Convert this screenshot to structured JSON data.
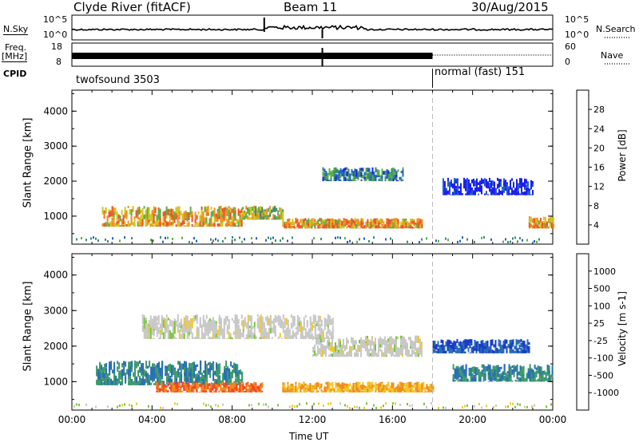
{
  "header": {
    "title": "Clyde River (fitACF)",
    "beam": "Beam 11",
    "date": "30/Aug/2015"
  },
  "summary": {
    "nsky_label": "N.Sky",
    "nsky_ticks": [
      "10^5",
      "10^0"
    ],
    "nsearch_label": "N.Search",
    "nsearch_ticks": [
      "10^5",
      "10^0"
    ],
    "freq_label": "Freq.",
    "freq_unit": "[MHz]",
    "freq_ticks": [
      "18",
      "8"
    ],
    "nave_label": "Nave",
    "nave_ticks": [
      "60",
      "0"
    ],
    "cpid_label": "CPID",
    "cpid_modes": [
      {
        "name": "twofsound",
        "id": "3503",
        "start_hour": 0
      },
      {
        "name": "normal (fast)",
        "id": "151",
        "start_hour": 18
      }
    ]
  },
  "chart_data": [
    {
      "type": "heatmap",
      "name": "power-panel",
      "xlabel": "",
      "ylabel": "Slant Range [km]",
      "xlim": [
        0,
        24
      ],
      "ylim": [
        200,
        4600
      ],
      "yticks": [
        "1000",
        "2000",
        "3000",
        "4000"
      ],
      "colorbar": {
        "label": "Power [dB]",
        "ticks": [
          "4",
          "8",
          "12",
          "16",
          "20",
          "24",
          "28"
        ],
        "colors": [
          "#1e1ef0",
          "#2060c8",
          "#3a8c6e",
          "#58b048",
          "#d2c820",
          "#f09020",
          "#f05028",
          "#e81818"
        ]
      },
      "echo_regions": [
        {
          "t0": 1.5,
          "t1": 8.5,
          "r0": 700,
          "r1": 1300,
          "value": 28
        },
        {
          "t0": 8.5,
          "t1": 10.5,
          "r0": 900,
          "r1": 1300,
          "value": 24
        },
        {
          "t0": 10.5,
          "t1": 17.5,
          "r0": 650,
          "r1": 950,
          "value": 28
        },
        {
          "t0": 12.5,
          "t1": 16.5,
          "r0": 2000,
          "r1": 2400,
          "value": 16
        },
        {
          "t0": 18.5,
          "t1": 23,
          "r0": 1600,
          "r1": 2100,
          "value": 8
        },
        {
          "t0": 22.8,
          "t1": 24,
          "r0": 650,
          "r1": 1000,
          "value": 28
        }
      ]
    },
    {
      "type": "heatmap",
      "name": "velocity-panel",
      "xlabel": "Time UT",
      "ylabel": "Slant Range [km]",
      "xlim": [
        0,
        24
      ],
      "ylim": [
        200,
        4600
      ],
      "xticks": [
        "00:00",
        "04:00",
        "08:00",
        "12:00",
        "16:00",
        "20:00",
        "00:00"
      ],
      "yticks": [
        "1000",
        "2000",
        "3000",
        "4000"
      ],
      "colorbar": {
        "label": "Velocity [m s-1]",
        "ticks": [
          "1000",
          "500",
          "100",
          "25",
          "-25",
          "-100",
          "-500",
          "-1000"
        ],
        "colors": [
          "#1a3cc8",
          "#2a6eb4",
          "#3c9a6a",
          "#78c832",
          "#c8c8c8",
          "#f0c828",
          "#f08c1e",
          "#f04628",
          "#e61414"
        ]
      },
      "echo_regions": [
        {
          "t0": 1.2,
          "t1": 8.5,
          "r0": 900,
          "r1": 1600,
          "value": 500
        },
        {
          "t0": 4.2,
          "t1": 9.5,
          "r0": 700,
          "r1": 1000,
          "value": -500
        },
        {
          "t0": 10.5,
          "t1": 18.0,
          "r0": 700,
          "r1": 1000,
          "value": -100
        },
        {
          "t0": 12.0,
          "t1": 17.5,
          "r0": 1700,
          "r1": 2300,
          "value": 0
        },
        {
          "t0": 3.5,
          "t1": 13.0,
          "r0": 2200,
          "r1": 2900,
          "value": 0
        },
        {
          "t0": 18.0,
          "t1": 22.8,
          "r0": 1800,
          "r1": 2200,
          "value": 1000
        },
        {
          "t0": 19.0,
          "t1": 24,
          "r0": 1000,
          "r1": 1500,
          "value": 500
        }
      ]
    }
  ]
}
